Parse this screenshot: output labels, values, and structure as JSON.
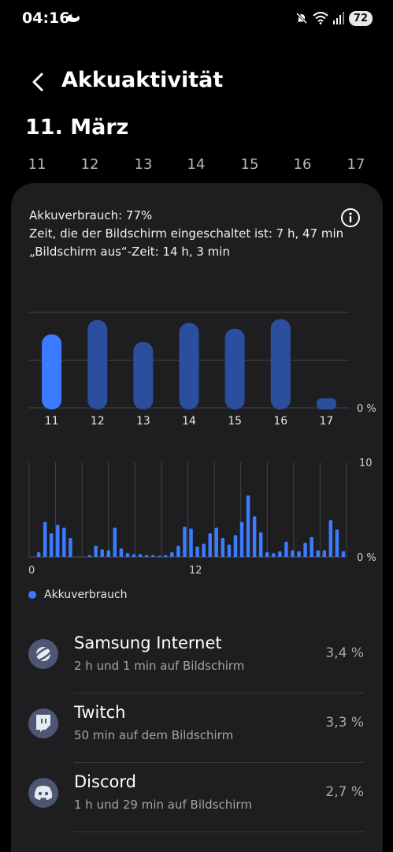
{
  "status_bar": {
    "time": "04:16",
    "battery": "72",
    "icons": [
      "weather-cloud-icon",
      "mute-icon",
      "wifi-icon",
      "signal-icon"
    ]
  },
  "header": {
    "title": "Akkuaktivität",
    "back_icon": "chevron-left-icon"
  },
  "date_heading": "11. März",
  "day_tabs": [
    {
      "label": "11",
      "selected": true
    },
    {
      "label": "12",
      "selected": false
    },
    {
      "label": "13",
      "selected": false
    },
    {
      "label": "14",
      "selected": false
    },
    {
      "label": "15",
      "selected": false
    },
    {
      "label": "16",
      "selected": false
    },
    {
      "label": "17",
      "selected": false
    }
  ],
  "summary": {
    "usage": "Akkuverbrauch: 77%",
    "screen_on": "Zeit, die der Bildschirm eingeschaltet ist: 7 h, 47 min",
    "screen_off": "„Bildschirm aus“-Zeit: 14 h, 3 min",
    "info_icon": "info-icon"
  },
  "chart_data": [
    {
      "type": "bar",
      "categories": [
        "11",
        "12",
        "13",
        "14",
        "15",
        "16",
        "17"
      ],
      "values": [
        77,
        92,
        69,
        89,
        83,
        93,
        10
      ],
      "ylim": [
        0,
        100
      ],
      "y_axis_label": "0 %",
      "grid": true,
      "highlight_index": 0,
      "colors": {
        "selected": "#3b7bff",
        "other": "#2b4f9e"
      }
    },
    {
      "type": "bar",
      "x_tick_labels": [
        "0",
        "12"
      ],
      "values": [
        0,
        0.5,
        3.7,
        2.5,
        3.4,
        3.1,
        2,
        0,
        0,
        0.2,
        1.2,
        0.8,
        0.7,
        3.1,
        0.9,
        0.4,
        0.3,
        0.3,
        0.2,
        0.2,
        0.1,
        0.2,
        0.5,
        1.2,
        3.2,
        3,
        1.1,
        1.4,
        2.5,
        3.1,
        2,
        1.3,
        2.3,
        3.7,
        6.5,
        4.3,
        2.6,
        0.5,
        0.4,
        0.6,
        1.6,
        0.7,
        0.6,
        1.5,
        2.1,
        0.7,
        0.7,
        3.9,
        2.9,
        0.6
      ],
      "ylim": [
        0,
        10
      ],
      "y_tick_labels": [
        "10",
        "0 %"
      ],
      "grid": true,
      "color": "#3b7bff"
    }
  ],
  "legend": {
    "label": "Akkuverbrauch",
    "color": "#3b7bff"
  },
  "apps": [
    {
      "name": "Samsung Internet",
      "detail": "2 h und 1 min auf Bildschirm",
      "percent": "3,4 %",
      "icon": "samsung-internet-icon"
    },
    {
      "name": "Twitch",
      "detail": "50 min auf dem Bildschirm",
      "percent": "3,3 %",
      "icon": "twitch-icon"
    },
    {
      "name": "Discord",
      "detail": "1 h und 29 min auf Bildschirm",
      "percent": "2,7 %",
      "icon": "discord-icon"
    }
  ]
}
